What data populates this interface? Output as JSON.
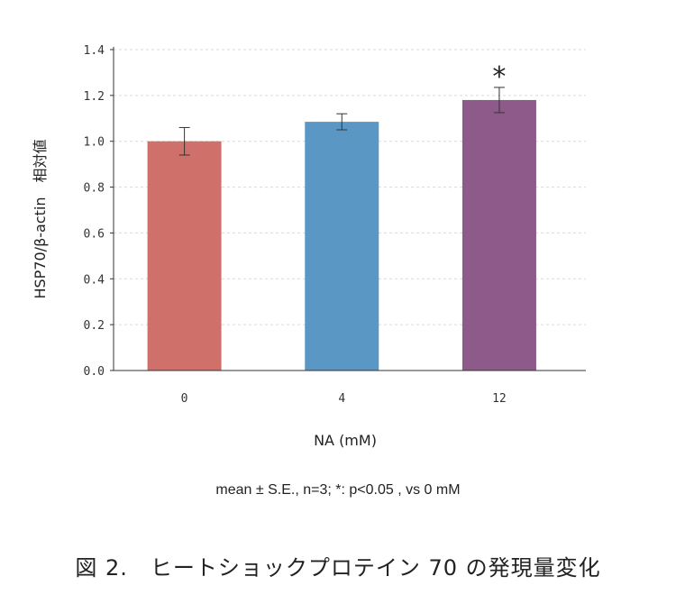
{
  "chart_data": {
    "type": "bar",
    "categories": [
      "0",
      "4",
      "12"
    ],
    "values": [
      1.0,
      1.085,
      1.18
    ],
    "errors": [
      0.06,
      0.035,
      0.055
    ],
    "colors": [
      "#D0706A",
      "#5B97C4",
      "#8D5A8A"
    ],
    "significance": [
      "",
      "",
      "*"
    ],
    "ylim": [
      0,
      1.4
    ],
    "yticks": [
      "0.0",
      "0.2",
      "0.4",
      "0.6",
      "0.8",
      "1.0",
      "1.2",
      "1.4"
    ],
    "ylabel": "HSP70/β-actin　相対値",
    "xlabel": "NA (mM)",
    "grid": "horizontal dashed"
  },
  "footnote": "mean ± S.E., n=3; *: p<0.05 , vs 0 mM",
  "caption": "図 2.　ヒートショックプロテイン 70 の発現量変化"
}
